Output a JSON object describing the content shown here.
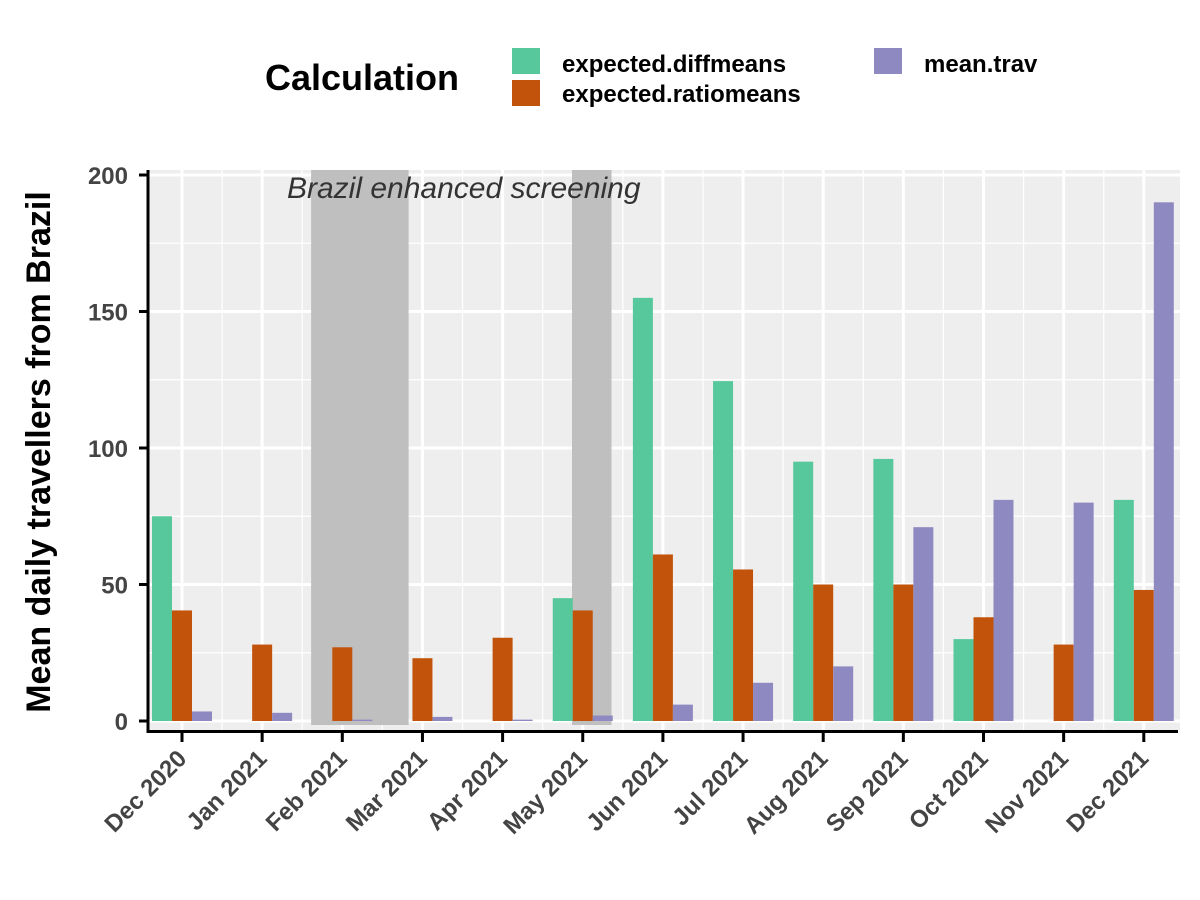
{
  "chart_data": {
    "type": "bar",
    "legend": {
      "title": "Calculation",
      "placement": "top"
    },
    "ylabel": "Mean daily travellers from Brazil",
    "xlabel": "",
    "ylim": [
      0,
      200
    ],
    "yticks": [
      0,
      50,
      100,
      150,
      200
    ],
    "grid": true,
    "categories": [
      "Dec 2020",
      "Jan 2021",
      "Feb 2021",
      "Mar 2021",
      "Apr 2021",
      "May 2021",
      "Jun 2021",
      "Jul 2021",
      "Aug 2021",
      "Sep 2021",
      "Oct 2021",
      "Nov 2021",
      "Dec 2021"
    ],
    "series": [
      {
        "name": "expected.diffmeans",
        "color": "#57c89c",
        "values": [
          75,
          0,
          0,
          0,
          0,
          45,
          155,
          124.5,
          95,
          96,
          30,
          0,
          81
        ]
      },
      {
        "name": "expected.ratiomeans",
        "color": "#c2530a",
        "values": [
          40.5,
          28,
          27,
          23,
          30.5,
          40.5,
          61,
          55.5,
          50,
          50,
          38,
          28,
          48
        ]
      },
      {
        "name": "mean.trav",
        "color": "#8e89c0",
        "values": [
          3.5,
          3,
          0.5,
          1.5,
          0.5,
          2,
          6,
          14,
          20,
          71,
          81,
          80,
          190
        ]
      }
    ],
    "shaded_periods": [
      {
        "start": "2021-01-19",
        "end": "2021-02-25"
      },
      {
        "start": "2021-04-28",
        "end": "2021-05-13"
      }
    ],
    "annotation": "Brazil enhanced screening"
  }
}
